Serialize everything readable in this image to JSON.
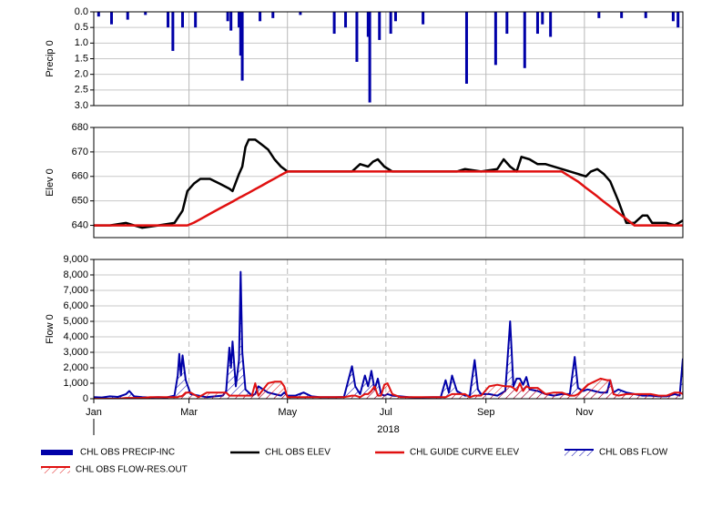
{
  "chart_data": [
    {
      "type": "bar",
      "ylabel": "Precip 0",
      "y_inverted": true,
      "ylim": [
        0,
        3
      ],
      "xlim": [
        0,
        365
      ],
      "grid": true,
      "yticks": [
        {
          "value": 0,
          "label": "0.0"
        },
        0.5,
        {
          "value": 1,
          "label": "1.0"
        },
        1.5,
        {
          "value": 2,
          "label": "2.0"
        },
        2.5,
        {
          "value": 3,
          "label": "3.0"
        }
      ],
      "x": [
        3,
        11,
        21,
        32,
        46,
        49,
        55,
        63,
        83,
        85,
        90,
        91,
        92,
        103,
        111,
        128,
        149,
        156,
        163,
        170,
        171,
        177,
        184,
        187,
        204,
        231,
        249,
        256,
        267,
        275,
        278,
        283,
        313,
        327,
        342,
        359,
        362
      ],
      "series": [
        {
          "name": "CHL OBS PRECIP-INC",
          "color": "#0000a8",
          "values": [
            0.15,
            0.4,
            0.25,
            0.1,
            0.5,
            1.25,
            0.5,
            0.5,
            0.3,
            0.6,
            0.5,
            1.4,
            2.2,
            0.3,
            0.2,
            0.1,
            0.7,
            0.5,
            1.6,
            0.8,
            2.9,
            0.9,
            0.7,
            0.3,
            0.4,
            2.3,
            1.7,
            0.7,
            1.8,
            0.7,
            0.4,
            0.8,
            0.2,
            0.2,
            0.2,
            0.3,
            0.5
          ]
        }
      ]
    },
    {
      "type": "line",
      "ylabel": "Elev 0",
      "ylim": [
        635,
        680
      ],
      "xlim": [
        0,
        365
      ],
      "grid": true,
      "yticks": [
        640,
        650,
        660,
        670,
        680
      ],
      "x": [
        0,
        10,
        20,
        25,
        30,
        40,
        50,
        55,
        58,
        62,
        66,
        72,
        78,
        84,
        86,
        90,
        92,
        94,
        96,
        100,
        104,
        108,
        112,
        116,
        120,
        130,
        140,
        150,
        160,
        165,
        170,
        173,
        176,
        180,
        185,
        195,
        210,
        225,
        230,
        240,
        250,
        254,
        258,
        262,
        265,
        270,
        275,
        280,
        290,
        300,
        305,
        308,
        312,
        316,
        320,
        325,
        330,
        335,
        340,
        343,
        346,
        355,
        360,
        365
      ],
      "series": [
        {
          "name": "CHL OBS ELEV",
          "color": "#000000",
          "values": [
            640,
            640,
            641,
            640,
            639,
            640,
            641,
            646,
            654,
            657,
            659,
            659,
            657,
            655,
            654,
            661,
            664,
            672,
            675,
            675,
            673,
            671,
            667,
            664,
            662,
            662,
            662,
            662,
            662,
            665,
            664,
            666,
            667,
            664,
            662,
            662,
            662,
            662,
            663,
            662,
            663,
            667,
            664,
            662,
            668,
            667,
            665,
            665,
            663,
            661,
            660,
            662,
            663,
            661,
            658,
            650,
            641,
            641,
            644,
            644,
            641,
            641,
            640,
            642
          ]
        },
        {
          "name": "CHL GUIDE CURVE ELEV",
          "color": "#e01010",
          "values": [
            640,
            640,
            640,
            640,
            640,
            640,
            640,
            640,
            640,
            641.1,
            642.5,
            644.7,
            646.9,
            649,
            649.7,
            651.2,
            651.9,
            652.6,
            653.3,
            654.8,
            656.2,
            657.7,
            659.1,
            660.6,
            662,
            662,
            662,
            662,
            662,
            662,
            662,
            662,
            662,
            662,
            662,
            662,
            662,
            662,
            662,
            662,
            662,
            662,
            662,
            662,
            662,
            662,
            662,
            662,
            662,
            657.9,
            655.3,
            653.8,
            651.8,
            649.7,
            647.7,
            645.1,
            642.6,
            640,
            640,
            640,
            640,
            640,
            640,
            640
          ]
        }
      ]
    },
    {
      "type": "area",
      "ylabel": "Flow 0",
      "xlabel": "2018",
      "ylim": [
        0,
        9000
      ],
      "xlim": [
        0,
        365
      ],
      "grid": true,
      "yticks": [
        0,
        {
          "value": 1000,
          "label": "1,000"
        },
        {
          "value": 2000,
          "label": "2,000"
        },
        {
          "value": 3000,
          "label": "3,000"
        },
        {
          "value": 4000,
          "label": "4,000"
        },
        {
          "value": 5000,
          "label": "5,000"
        },
        {
          "value": 6000,
          "label": "6,000"
        },
        {
          "value": 7000,
          "label": "7,000"
        },
        {
          "value": 8000,
          "label": "8,000"
        },
        {
          "value": 9000,
          "label": "9,000"
        }
      ],
      "xticks": [
        {
          "value": 0,
          "label": "Jan"
        },
        {
          "value": 59,
          "label": "Mar"
        },
        {
          "value": 120,
          "label": "May"
        },
        {
          "value": 181,
          "label": "Jul"
        },
        {
          "value": 243,
          "label": "Sep"
        },
        {
          "value": 304,
          "label": "Nov"
        }
      ],
      "x": [
        0,
        5,
        10,
        15,
        20,
        22,
        25,
        30,
        35,
        40,
        45,
        50,
        52,
        53,
        54,
        55,
        57,
        60,
        65,
        70,
        75,
        80,
        82,
        84,
        85,
        86,
        88,
        90,
        91,
        92,
        94,
        96,
        98,
        100,
        102,
        105,
        108,
        112,
        116,
        118,
        120,
        125,
        130,
        135,
        140,
        145,
        150,
        155,
        160,
        162,
        165,
        168,
        170,
        172,
        174,
        176,
        178,
        180,
        182,
        185,
        190,
        195,
        200,
        210,
        215,
        218,
        220,
        222,
        225,
        230,
        233,
        236,
        238,
        240,
        245,
        250,
        255,
        258,
        260,
        262,
        264,
        266,
        268,
        270,
        275,
        280,
        285,
        290,
        295,
        298,
        300,
        303,
        306,
        310,
        314,
        318,
        320,
        322,
        325,
        330,
        335,
        340,
        345,
        350,
        355,
        360,
        363,
        365
      ],
      "series": [
        {
          "name": "CHL OBS FLOW",
          "color": "#0000a8",
          "hatch": true,
          "values": [
            100,
            80,
            150,
            120,
            300,
            500,
            150,
            100,
            80,
            100,
            80,
            200,
            1500,
            2900,
            1500,
            2800,
            1200,
            300,
            200,
            100,
            150,
            200,
            500,
            3300,
            2000,
            3700,
            800,
            2500,
            8200,
            3000,
            600,
            400,
            200,
            300,
            800,
            600,
            400,
            300,
            200,
            400,
            200,
            200,
            400,
            150,
            100,
            100,
            100,
            120,
            2100,
            800,
            300,
            1500,
            800,
            1800,
            600,
            1300,
            300,
            200,
            300,
            200,
            150,
            100,
            80,
            100,
            100,
            1200,
            400,
            1500,
            500,
            200,
            200,
            2500,
            600,
            300,
            300,
            200,
            500,
            5000,
            800,
            1300,
            1300,
            900,
            1400,
            600,
            500,
            300,
            200,
            300,
            300,
            2700,
            700,
            500,
            600,
            500,
            400,
            400,
            1200,
            400,
            600,
            400,
            300,
            200,
            200,
            150,
            150,
            300,
            200,
            2600
          ]
        },
        {
          "name": "CHL OBS FLOW-RES.OUT",
          "color": "#e01010",
          "hatch": true,
          "values": [
            0,
            0,
            0,
            0,
            50,
            50,
            50,
            50,
            100,
            100,
            100,
            100,
            100,
            150,
            150,
            200,
            400,
            400,
            100,
            400,
            400,
            400,
            400,
            200,
            200,
            200,
            200,
            200,
            200,
            200,
            200,
            200,
            200,
            1000,
            200,
            600,
            1000,
            1100,
            1100,
            800,
            100,
            100,
            100,
            100,
            100,
            100,
            100,
            100,
            200,
            200,
            100,
            300,
            300,
            500,
            800,
            200,
            200,
            900,
            1000,
            300,
            100,
            100,
            100,
            100,
            100,
            100,
            200,
            300,
            300,
            300,
            100,
            200,
            200,
            200,
            800,
            900,
            800,
            800,
            700,
            500,
            1000,
            500,
            800,
            700,
            700,
            300,
            400,
            400,
            200,
            200,
            300,
            600,
            900,
            1100,
            1300,
            1200,
            1200,
            300,
            200,
            300,
            300,
            300,
            300,
            200,
            200,
            400,
            400,
            300
          ]
        }
      ]
    }
  ]
}
